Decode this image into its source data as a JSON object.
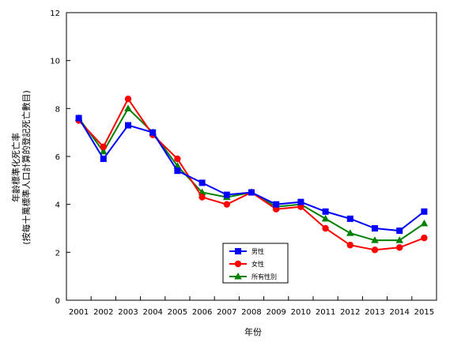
{
  "chart_data": {
    "type": "line",
    "title": "",
    "xlabel": "年份",
    "ylabel_line1": "年齡標準化死亡率",
    "ylabel_line2": "(按每十萬標準人口計算的登記死亡數目)",
    "ylim": [
      0,
      12
    ],
    "yticks": [
      0,
      2,
      4,
      6,
      8,
      10,
      12
    ],
    "grid": false,
    "legend_position": "bottom-center",
    "categories": [
      "2001",
      "2002",
      "2003",
      "2004",
      "2005",
      "2006",
      "2007",
      "2008",
      "2009",
      "2010",
      "2011",
      "2012",
      "2013",
      "2014",
      "2015"
    ],
    "series": [
      {
        "name": "男性",
        "color": "#0000ff",
        "marker": "square",
        "values": [
          7.6,
          5.9,
          7.3,
          7.0,
          5.4,
          4.9,
          4.4,
          4.5,
          4.0,
          4.1,
          3.7,
          3.4,
          3.0,
          2.9,
          3.7
        ]
      },
      {
        "name": "女性",
        "color": "#ff0000",
        "marker": "circle",
        "values": [
          7.5,
          6.4,
          8.4,
          6.9,
          5.9,
          4.3,
          4.0,
          4.5,
          3.8,
          3.9,
          3.0,
          2.3,
          2.1,
          2.2,
          2.6
        ]
      },
      {
        "name": "所有性別",
        "color": "#008000",
        "marker": "triangle",
        "values": [
          7.6,
          6.2,
          8.0,
          7.0,
          5.6,
          4.5,
          4.3,
          4.5,
          3.9,
          4.0,
          3.4,
          2.8,
          2.5,
          2.5,
          3.2
        ]
      }
    ]
  }
}
